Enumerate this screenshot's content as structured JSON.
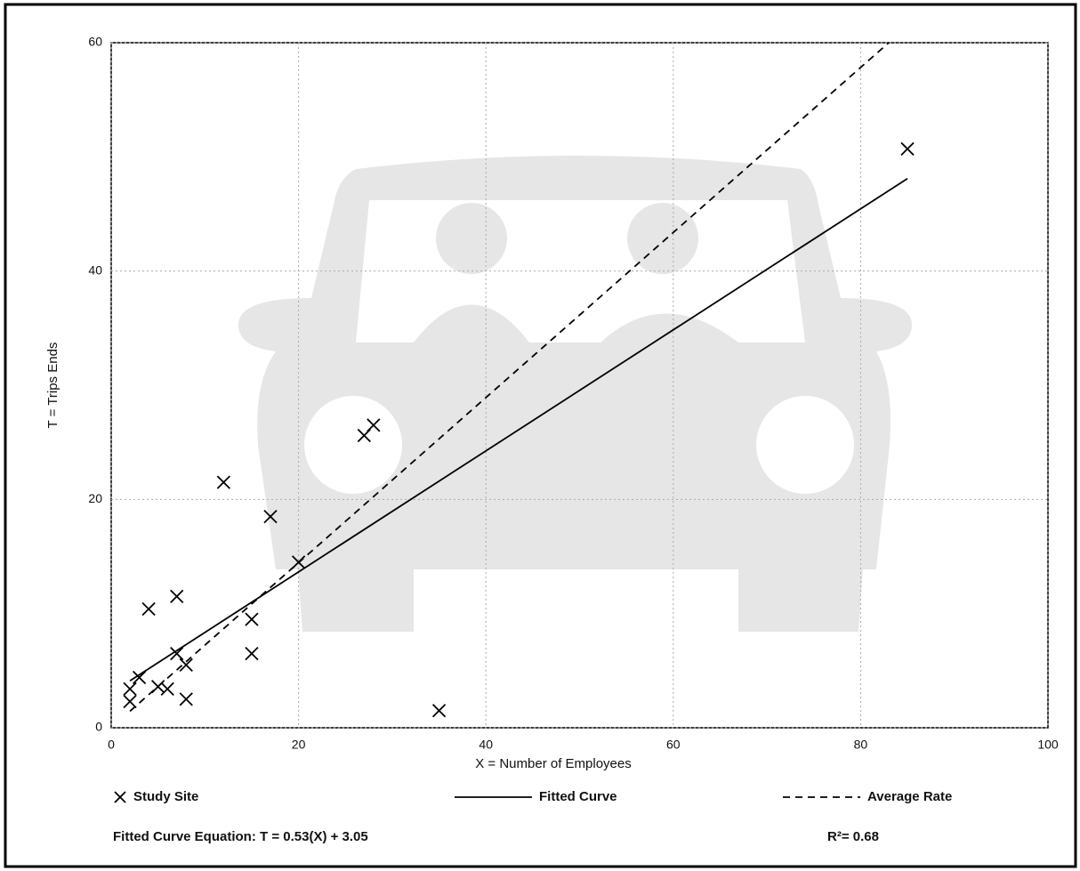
{
  "chart_data": {
    "type": "scatter",
    "x_label": "X = Number of Employees",
    "y_label": "T = Trips Ends",
    "xlim": [
      0,
      100
    ],
    "xticks": [
      0,
      20,
      40,
      60,
      80,
      100
    ],
    "ylim": [
      0,
      60
    ],
    "yticks": [
      0,
      20,
      40,
      60
    ],
    "grid": true,
    "series": [
      {
        "name": "Study Site",
        "color": "#000000",
        "style": "x-marker",
        "x": [
          2,
          2,
          3,
          4,
          5,
          6,
          7,
          7,
          8,
          8,
          12,
          15,
          15,
          17,
          20,
          27,
          28,
          35,
          85
        ],
        "values": [
          2.3,
          3.4,
          4.4,
          10.4,
          3.6,
          3.4,
          11.5,
          6.5,
          5.5,
          2.5,
          21.5,
          9.5,
          6.5,
          18.5,
          14.5,
          25.6,
          26.5,
          1.5,
          50.7
        ]
      },
      {
        "name": "Fitted Curve",
        "color": "#000000",
        "style": "solid",
        "x": [
          2,
          85
        ],
        "values": [
          4.11,
          48.1
        ]
      },
      {
        "name": "Average Rate",
        "color": "#000000",
        "style": "dashed",
        "x": [
          2,
          83
        ],
        "values": [
          1.45,
          60
        ]
      }
    ],
    "equation": "Fitted Curve Equation: T = 0.53(X) + 3.05",
    "r_squared": "R²= 0.68"
  }
}
